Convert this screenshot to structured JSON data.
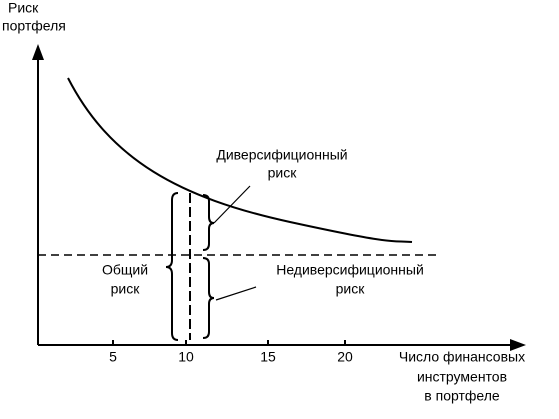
{
  "y_axis": {
    "label_lines": [
      "Риск",
      "портфеля"
    ]
  },
  "x_axis": {
    "ticks": [
      "5",
      "10",
      "15",
      "20"
    ],
    "label_lines": [
      "Число финансовых",
      "инструментов",
      "в портфеле"
    ]
  },
  "annotations": {
    "diversifiable": [
      "Диверсифиционный",
      "риск"
    ],
    "nondiversifiable": [
      "Недиверсифиционный",
      "риск"
    ],
    "total": [
      "Общий",
      "риск"
    ]
  }
}
